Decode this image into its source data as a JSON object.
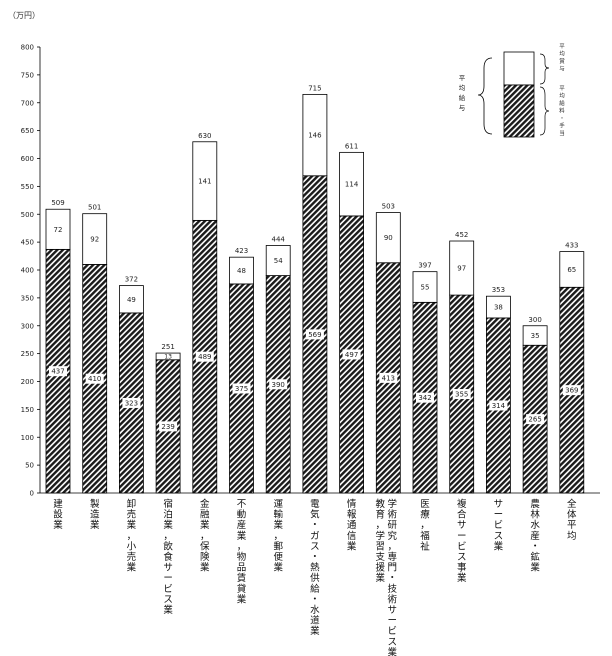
{
  "chart_data": {
    "type": "bar",
    "unit_label": "（万円）",
    "ylim": [
      0,
      800
    ],
    "yticks": [
      0,
      50,
      100,
      150,
      200,
      250,
      300,
      350,
      400,
      450,
      500,
      550,
      600,
      650,
      700,
      750,
      800
    ],
    "grid": false,
    "stacked": true,
    "categories": [
      "建設業",
      "製造業",
      "卸売業，小売業",
      "宿泊業，飲食サービス業",
      "金融業，保険業",
      "不動産業，物品賃貸業",
      "運輸業，郵便業",
      "電気・ガス・熱供給・水道業",
      "情報通信業",
      "学術研究，専門・技術サービス業｜教育，学習支援業",
      "医療，福祉",
      "複合サービス事業",
      "サービス業",
      "農林水産・鉱業",
      "全体平均"
    ],
    "series": [
      {
        "name": "平均給料・手当",
        "values": [
          437,
          410,
          323,
          239,
          489,
          375,
          390,
          569,
          497,
          413,
          342,
          355,
          314,
          265,
          369
        ],
        "fill": "hatched"
      },
      {
        "name": "平均賞与",
        "values": [
          72,
          92,
          49,
          13,
          141,
          48,
          54,
          146,
          114,
          90,
          55,
          97,
          38,
          35,
          65
        ],
        "fill": "white"
      }
    ],
    "totals": [
      509,
      501,
      372,
      251,
      630,
      423,
      444,
      715,
      611,
      503,
      397,
      452,
      353,
      300,
      433
    ],
    "legend": {
      "placement": "top-right",
      "bracket_label": "平均給与",
      "items": [
        "平均賞与",
        "平均給料・手当"
      ]
    }
  }
}
